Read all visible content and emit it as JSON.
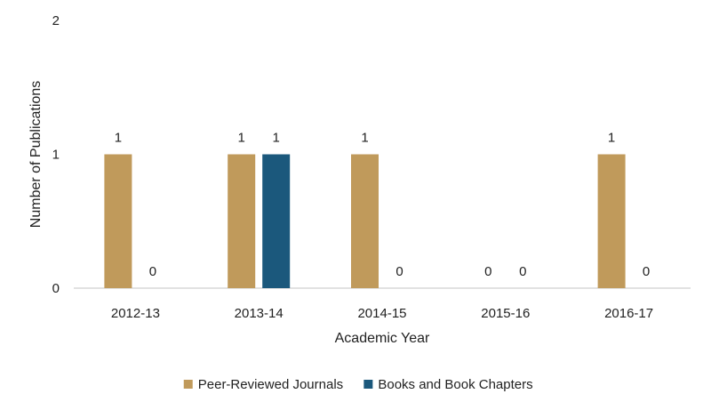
{
  "chart_data": {
    "type": "bar",
    "xlabel": "Academic Year",
    "ylabel": "Number of Publications",
    "categories": [
      "2012-13",
      "2013-14",
      "2014-15",
      "2015-16",
      "2016-17"
    ],
    "series": [
      {
        "name": "Peer-Reviewed Journals",
        "color": "#C09A5B",
        "values": [
          1,
          1,
          1,
          0,
          1
        ]
      },
      {
        "name": "Books and Book Chapters",
        "color": "#1B587C",
        "values": [
          0,
          1,
          0,
          0,
          0
        ]
      }
    ],
    "ylim": [
      0,
      2
    ],
    "yticks": [
      0,
      1,
      2
    ],
    "data_labels": true,
    "grid": false,
    "legend_position": "bottom",
    "axis_color": "#D9D9D9"
  }
}
